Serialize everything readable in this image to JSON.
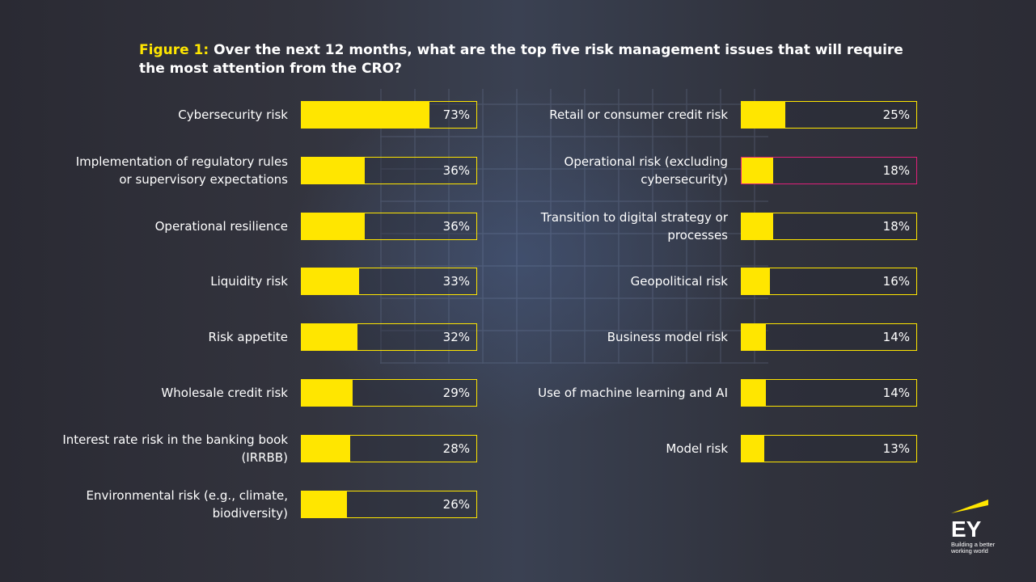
{
  "title": {
    "prefix": "Figure 1:",
    "text": " Over the next 12 months, what are the top five risk management issues that will require the most attention from the CRO?"
  },
  "colors": {
    "accent": "#ffe600",
    "highlight_border": "#e0207a"
  },
  "logo": {
    "brand": "EY",
    "tagline": "Building a better working world"
  },
  "chart_data": {
    "type": "bar",
    "title": "Over the next 12 months, what are the top five risk management issues that will require the most attention from the CRO?",
    "xlim": [
      0,
      100
    ],
    "columns": [
      {
        "categories": [
          "Cybersecurity risk",
          "Implementation of regulatory rules or supervisory expectations",
          "Operational resilience",
          "Liquidity risk",
          "Risk appetite",
          "Wholesale credit risk",
          "Interest rate risk in the banking book (IRRBB)",
          "Environmental risk (e.g., climate, biodiversity)"
        ],
        "values": [
          73,
          36,
          36,
          33,
          32,
          29,
          28,
          26
        ]
      },
      {
        "categories": [
          "Retail or consumer credit risk",
          "Operational risk (excluding cybersecurity)",
          "Transition to digital strategy or processes",
          "Geopolitical risk",
          "Business model risk",
          "Use of machine learning and AI",
          "Model risk"
        ],
        "values": [
          25,
          18,
          18,
          16,
          14,
          14,
          13
        ]
      }
    ]
  }
}
